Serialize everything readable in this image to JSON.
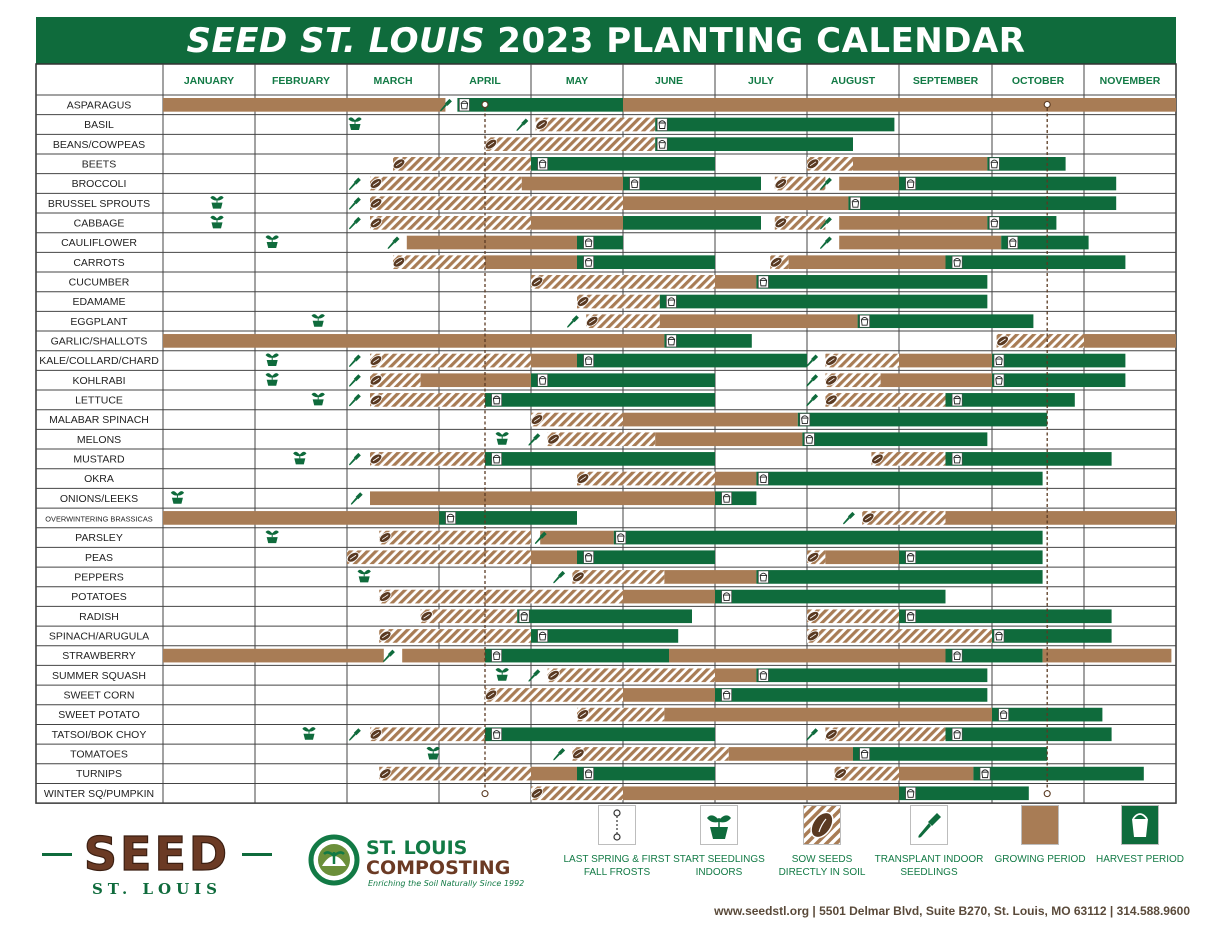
{
  "title": {
    "bold_part": "SEED ST. LOUIS",
    "rest": "2023 PLANTING CALENDAR"
  },
  "months": [
    "JANUARY",
    "FEBRUARY",
    "MARCH",
    "APRIL",
    "MAY",
    "JUNE",
    "JULY",
    "AUGUST",
    "SEPTEMBER",
    "OCTOBER",
    "NOVEMBER"
  ],
  "crops": [
    {
      "name": "ASPARAGUS",
      "items": [
        [
          "g",
          0,
          3.07
        ],
        [
          "t",
          3.07
        ],
        [
          "v",
          3.2,
          5
        ],
        [
          "h",
          3.2
        ],
        [
          "g",
          5,
          11
        ]
      ]
    },
    {
      "name": "BASIL",
      "items": [
        [
          "i",
          2
        ],
        [
          "t",
          3.9
        ],
        [
          "s",
          4.05,
          5.35
        ],
        [
          "h",
          5.35
        ],
        [
          "v",
          5.35,
          7.95
        ]
      ]
    },
    {
      "name": "BEANS/COWPEAS",
      "items": [
        [
          "s",
          3.5,
          5.35
        ],
        [
          "h",
          5.35
        ],
        [
          "v",
          5.35,
          7.5
        ]
      ]
    },
    {
      "name": "BEETS",
      "items": [
        [
          "s",
          2.5,
          4
        ],
        [
          "h",
          4.05
        ],
        [
          "v",
          4,
          6
        ],
        [
          "s",
          7,
          7.5
        ],
        [
          "g",
          7.5,
          8.95
        ],
        [
          "h",
          8.95
        ],
        [
          "v",
          8.95,
          9.8
        ]
      ]
    },
    {
      "name": "BROCCOLI",
      "items": [
        [
          "t",
          2.08
        ],
        [
          "s",
          2.25,
          3.9
        ],
        [
          "g",
          3.9,
          5
        ],
        [
          "h",
          5.05
        ],
        [
          "v",
          5,
          6.5
        ],
        [
          "s",
          6.65,
          7.2
        ],
        [
          "t",
          7.2
        ],
        [
          "g",
          7.35,
          8
        ],
        [
          "h",
          8.05
        ],
        [
          "v",
          8,
          10.35
        ]
      ]
    },
    {
      "name": "BRUSSEL SPROUTS",
      "items": [
        [
          "i",
          0.5
        ],
        [
          "t",
          2.08
        ],
        [
          "s",
          2.25,
          5
        ],
        [
          "g",
          5,
          7.45
        ],
        [
          "h",
          7.45
        ],
        [
          "v",
          7.45,
          10.35
        ]
      ]
    },
    {
      "name": "CABBAGE",
      "items": [
        [
          "i",
          0.5
        ],
        [
          "t",
          2.08
        ],
        [
          "s",
          2.25,
          4
        ],
        [
          "g",
          4,
          5
        ],
        [
          "v",
          5,
          6.5
        ],
        [
          "s",
          6.65,
          7.2
        ],
        [
          "t",
          7.2
        ],
        [
          "g",
          7.35,
          8.95
        ],
        [
          "h",
          8.95
        ],
        [
          "v",
          8.95,
          9.7
        ]
      ]
    },
    {
      "name": "CAULIFLOWER",
      "items": [
        [
          "i",
          1.1
        ],
        [
          "t",
          2.5
        ],
        [
          "g",
          2.65,
          4.5
        ],
        [
          "h",
          4.55
        ],
        [
          "v",
          4.5,
          5
        ],
        [
          "t",
          7.2
        ],
        [
          "g",
          7.35,
          9.1
        ],
        [
          "h",
          9.15
        ],
        [
          "v",
          9.1,
          10.05
        ]
      ]
    },
    {
      "name": "CARROTS",
      "items": [
        [
          "s",
          2.5,
          3.5
        ],
        [
          "g",
          3.5,
          4.5
        ],
        [
          "h",
          4.55
        ],
        [
          "v",
          4.5,
          6
        ],
        [
          "s",
          6.6,
          6.8
        ],
        [
          "g",
          6.8,
          8.5
        ],
        [
          "h",
          8.55
        ],
        [
          "v",
          8.5,
          10.45
        ]
      ]
    },
    {
      "name": "CUCUMBER",
      "items": [
        [
          "s",
          4,
          6
        ],
        [
          "g",
          6,
          6.45
        ],
        [
          "h",
          6.45
        ],
        [
          "v",
          6.45,
          8.95
        ]
      ]
    },
    {
      "name": "EDAMAME",
      "items": [
        [
          "s",
          4.5,
          5.4
        ],
        [
          "h",
          5.45
        ],
        [
          "v",
          5.4,
          8.95
        ]
      ]
    },
    {
      "name": "EGGPLANT",
      "items": [
        [
          "i",
          1.6
        ],
        [
          "t",
          4.45
        ],
        [
          "s",
          4.6,
          5.4
        ],
        [
          "g",
          5.4,
          7.55
        ],
        [
          "h",
          7.55
        ],
        [
          "v",
          7.55,
          9.45
        ]
      ]
    },
    {
      "name": "GARLIC/SHALLOTS",
      "items": [
        [
          "g",
          0,
          5.45
        ],
        [
          "h",
          5.45
        ],
        [
          "v",
          5.45,
          6.4
        ],
        [
          "s",
          9.05,
          10
        ],
        [
          "g",
          10,
          11
        ]
      ]
    },
    {
      "name": "KALE/COLLARD/CHARD",
      "items": [
        [
          "i",
          1.1
        ],
        [
          "t",
          2.08
        ],
        [
          "s",
          2.25,
          4
        ],
        [
          "g",
          4,
          4.5
        ],
        [
          "h",
          4.55
        ],
        [
          "v",
          4.5,
          7
        ],
        [
          "t",
          7.05
        ],
        [
          "s",
          7.2,
          8
        ],
        [
          "g",
          8,
          9
        ],
        [
          "h",
          9
        ],
        [
          "v",
          9,
          10.45
        ]
      ]
    },
    {
      "name": "KOHLRABI",
      "items": [
        [
          "i",
          1.1
        ],
        [
          "t",
          2.08
        ],
        [
          "s",
          2.25,
          2.8
        ],
        [
          "g",
          2.8,
          4
        ],
        [
          "h",
          4.05
        ],
        [
          "v",
          4,
          6
        ],
        [
          "t",
          7.05
        ],
        [
          "s",
          7.2,
          7.8
        ],
        [
          "g",
          7.8,
          9
        ],
        [
          "h",
          9
        ],
        [
          "v",
          9,
          10.45
        ]
      ]
    },
    {
      "name": "LETTUCE",
      "items": [
        [
          "i",
          1.6
        ],
        [
          "t",
          2.08
        ],
        [
          "s",
          2.25,
          3.5
        ],
        [
          "h",
          3.55
        ],
        [
          "v",
          3.5,
          6
        ],
        [
          "t",
          7.05
        ],
        [
          "s",
          7.2,
          8.5
        ],
        [
          "h",
          8.55
        ],
        [
          "v",
          8.5,
          9.9
        ]
      ]
    },
    {
      "name": "MALABAR SPINACH",
      "items": [
        [
          "s",
          4,
          5
        ],
        [
          "g",
          5,
          6.9
        ],
        [
          "h",
          6.9
        ],
        [
          "v",
          6.9,
          9.6
        ]
      ]
    },
    {
      "name": "MELONS",
      "items": [
        [
          "i",
          3.6
        ],
        [
          "t",
          4.03
        ],
        [
          "s",
          4.18,
          5.35
        ],
        [
          "g",
          5.35,
          6.95
        ],
        [
          "h",
          6.95
        ],
        [
          "v",
          6.95,
          8.95
        ]
      ]
    },
    {
      "name": "MUSTARD",
      "items": [
        [
          "i",
          1.4
        ],
        [
          "t",
          2.08
        ],
        [
          "s",
          2.25,
          3.5
        ],
        [
          "h",
          3.55
        ],
        [
          "v",
          3.5,
          6
        ],
        [
          "s",
          7.7,
          8.5
        ],
        [
          "h",
          8.55
        ],
        [
          "v",
          8.5,
          10.3
        ]
      ]
    },
    {
      "name": "OKRA",
      "items": [
        [
          "s",
          4.5,
          6
        ],
        [
          "g",
          6,
          6.45
        ],
        [
          "h",
          6.45
        ],
        [
          "v",
          6.45,
          9.55
        ]
      ]
    },
    {
      "name": "ONIONS/LEEKS",
      "items": [
        [
          "i",
          0.07
        ],
        [
          "t",
          2.1
        ],
        [
          "g",
          2.25,
          6
        ],
        [
          "h",
          6.05
        ],
        [
          "v",
          6,
          6.45
        ]
      ]
    },
    {
      "name": "OVERWINTERING BRASSICAS",
      "small": true,
      "items": [
        [
          "g",
          0,
          3
        ],
        [
          "h",
          3.05
        ],
        [
          "v",
          3,
          4.5
        ],
        [
          "t",
          7.45
        ],
        [
          "s",
          7.6,
          8.5
        ],
        [
          "g",
          8.5,
          11
        ]
      ]
    },
    {
      "name": "PARSLEY",
      "items": [
        [
          "i",
          1.1
        ],
        [
          "s",
          2.35,
          4
        ],
        [
          "t",
          4.1
        ],
        [
          "g",
          4.1,
          4.9
        ],
        [
          "h",
          4.9
        ],
        [
          "v",
          4.9,
          9.55
        ]
      ]
    },
    {
      "name": "PEAS",
      "items": [
        [
          "s",
          2,
          4
        ],
        [
          "g",
          4,
          4.5
        ],
        [
          "h",
          4.55
        ],
        [
          "v",
          4.5,
          6
        ],
        [
          "s",
          7,
          7.2
        ],
        [
          "g",
          7.2,
          8
        ],
        [
          "h",
          8.05
        ],
        [
          "v",
          8,
          9.55
        ]
      ]
    },
    {
      "name": "PEPPERS",
      "items": [
        [
          "i",
          2.1
        ],
        [
          "t",
          4.3
        ],
        [
          "s",
          4.45,
          5.45
        ],
        [
          "g",
          5.45,
          6.45
        ],
        [
          "h",
          6.45
        ],
        [
          "v",
          6.45,
          9.55
        ]
      ]
    },
    {
      "name": "POTATOES",
      "items": [
        [
          "s",
          2.35,
          5
        ],
        [
          "g",
          5,
          6
        ],
        [
          "h",
          6.05
        ],
        [
          "v",
          6,
          8.5
        ]
      ]
    },
    {
      "name": "RADISH",
      "items": [
        [
          "s",
          2.8,
          3.85
        ],
        [
          "h",
          3.85
        ],
        [
          "v",
          3.85,
          5.75
        ],
        [
          "s",
          7,
          8
        ],
        [
          "h",
          8.05
        ],
        [
          "v",
          8,
          10.3
        ]
      ]
    },
    {
      "name": "SPINACH/ARUGULA",
      "items": [
        [
          "s",
          2.35,
          4
        ],
        [
          "h",
          4.05
        ],
        [
          "v",
          4,
          5.6
        ],
        [
          "s",
          7,
          9
        ],
        [
          "h",
          9
        ],
        [
          "v",
          9,
          10.3
        ]
      ]
    },
    {
      "name": "STRAWBERRY",
      "items": [
        [
          "g",
          0,
          2.4
        ],
        [
          "t",
          2.45
        ],
        [
          "g",
          2.6,
          3.5
        ],
        [
          "h",
          3.55
        ],
        [
          "v",
          3.5,
          5.5
        ],
        [
          "g",
          5.5,
          8.5
        ],
        [
          "h",
          8.55
        ],
        [
          "v",
          8.5,
          9.55
        ],
        [
          "g",
          9.55,
          10.95
        ]
      ]
    },
    {
      "name": "SUMMER SQUASH",
      "items": [
        [
          "i",
          3.6
        ],
        [
          "t",
          4.03
        ],
        [
          "s",
          4.18,
          6
        ],
        [
          "g",
          6,
          6.45
        ],
        [
          "h",
          6.45
        ],
        [
          "v",
          6.45,
          8.95
        ]
      ]
    },
    {
      "name": "SWEET CORN",
      "items": [
        [
          "s",
          3.5,
          5
        ],
        [
          "g",
          5,
          6
        ],
        [
          "h",
          6.05
        ],
        [
          "v",
          6,
          8.95
        ]
      ]
    },
    {
      "name": "SWEET POTATO",
      "items": [
        [
          "s",
          4.5,
          5.45
        ],
        [
          "g",
          5.45,
          9
        ],
        [
          "h",
          9.05
        ],
        [
          "v",
          9,
          10.2
        ]
      ]
    },
    {
      "name": "TATSOI/BOK CHOY",
      "items": [
        [
          "i",
          1.5
        ],
        [
          "t",
          2.08
        ],
        [
          "s",
          2.25,
          3.5
        ],
        [
          "h",
          3.55
        ],
        [
          "v",
          3.5,
          6
        ],
        [
          "t",
          7.05
        ],
        [
          "s",
          7.2,
          8.5
        ],
        [
          "h",
          8.55
        ],
        [
          "v",
          8.5,
          10.3
        ]
      ]
    },
    {
      "name": "TOMATOES",
      "items": [
        [
          "i",
          2.85
        ],
        [
          "t",
          4.3
        ],
        [
          "s",
          4.45,
          6.15
        ],
        [
          "g",
          6.15,
          7.5
        ],
        [
          "h",
          7.55
        ],
        [
          "v",
          7.5,
          9.6
        ]
      ]
    },
    {
      "name": "TURNIPS",
      "items": [
        [
          "s",
          2.35,
          4
        ],
        [
          "g",
          4,
          4.5
        ],
        [
          "h",
          4.55
        ],
        [
          "v",
          4.5,
          6
        ],
        [
          "s",
          7.3,
          8
        ],
        [
          "g",
          8,
          8.8
        ],
        [
          "h",
          8.85
        ],
        [
          "v",
          8.8,
          10.65
        ]
      ]
    },
    {
      "name": "WINTER SQ/PUMPKIN",
      "items": [
        [
          "s",
          4,
          5
        ],
        [
          "g",
          5,
          8
        ],
        [
          "h",
          8.05
        ],
        [
          "v",
          8,
          9.4
        ]
      ]
    }
  ],
  "frost_lines": {
    "spring": 3.5,
    "fall": 9.6
  },
  "legend": [
    {
      "label": "LAST SPRING & FIRST FALL FROSTS",
      "icon": "frost-line-icon"
    },
    {
      "label": "START SEEDLINGS INDOORS",
      "icon": "seedling-pot-icon"
    },
    {
      "label": "SOW SEEDS DIRECTLY IN SOIL",
      "icon": "seed-icon"
    },
    {
      "label": "TRANSPLANT INDOOR SEEDLINGS",
      "icon": "trowel-icon"
    },
    {
      "label": "GROWING PERIOD",
      "icon": "growing-swatch"
    },
    {
      "label": "HARVEST PERIOD",
      "icon": "harvest-bucket-icon"
    }
  ],
  "logos": {
    "seed_main": "SEED",
    "seed_sub": "ST. LOUIS",
    "composting_line1": "ST. LOUIS",
    "composting_line2": "COMPOSTING",
    "composting_tagline": "Enriching the Soil Naturally Since 1992"
  },
  "footer": "www.seedstl.org  |  5501 Delmar Blvd, Suite B270, St. Louis, MO 63112  |  314.588.9600",
  "colors": {
    "green": "#0f6b3c",
    "brown": "#a87c55",
    "light_green": "#127a45"
  }
}
